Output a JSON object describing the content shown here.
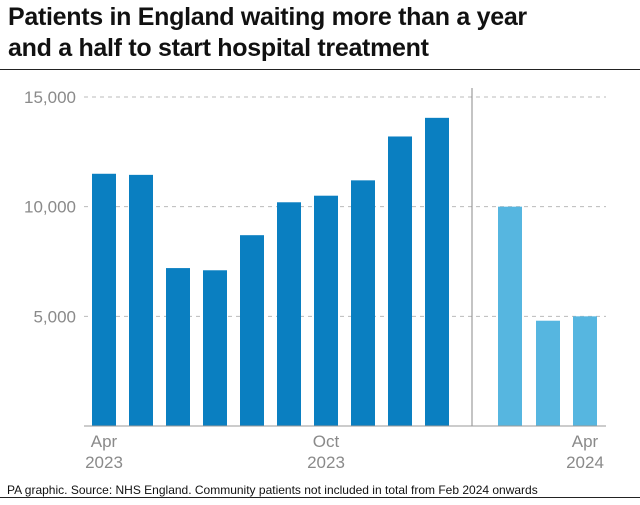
{
  "title_line1": "Patients in England waiting more than a year",
  "title_line2": "and a half to start hospital treatment",
  "source": "PA graphic. Source: NHS England. Community patients not included in total from Feb 2024 onwards",
  "colors": {
    "dark_bar": "#0a7fc1",
    "light_bar": "#56b6e0",
    "grid": "#bbbbbb",
    "axis_text": "#8a8a8a"
  },
  "chart_data": {
    "type": "bar",
    "title": "Patients in England waiting more than a year and a half to start hospital treatment",
    "ylim": [
      0,
      15000
    ],
    "yticks": [
      "15,000",
      "10,000",
      "5,000"
    ],
    "ytick_values": [
      15000,
      10000,
      5000
    ],
    "grid": true,
    "series_1": {
      "color": "#0a7fc1",
      "values": [
        11500,
        11450,
        7200,
        7100,
        8700,
        10200,
        10500,
        11200,
        13200,
        14050
      ]
    },
    "series_2": {
      "color": "#56b6e0",
      "values": [
        10000,
        4800,
        5000
      ]
    },
    "x_labels": [
      {
        "line1": "Apr",
        "line2": "2023",
        "bar_index": 0
      },
      {
        "line1": "Oct",
        "line2": "2023",
        "bar_index": 6
      },
      {
        "line1": "Apr",
        "line2": "2024",
        "bar_index": 12
      }
    ]
  }
}
